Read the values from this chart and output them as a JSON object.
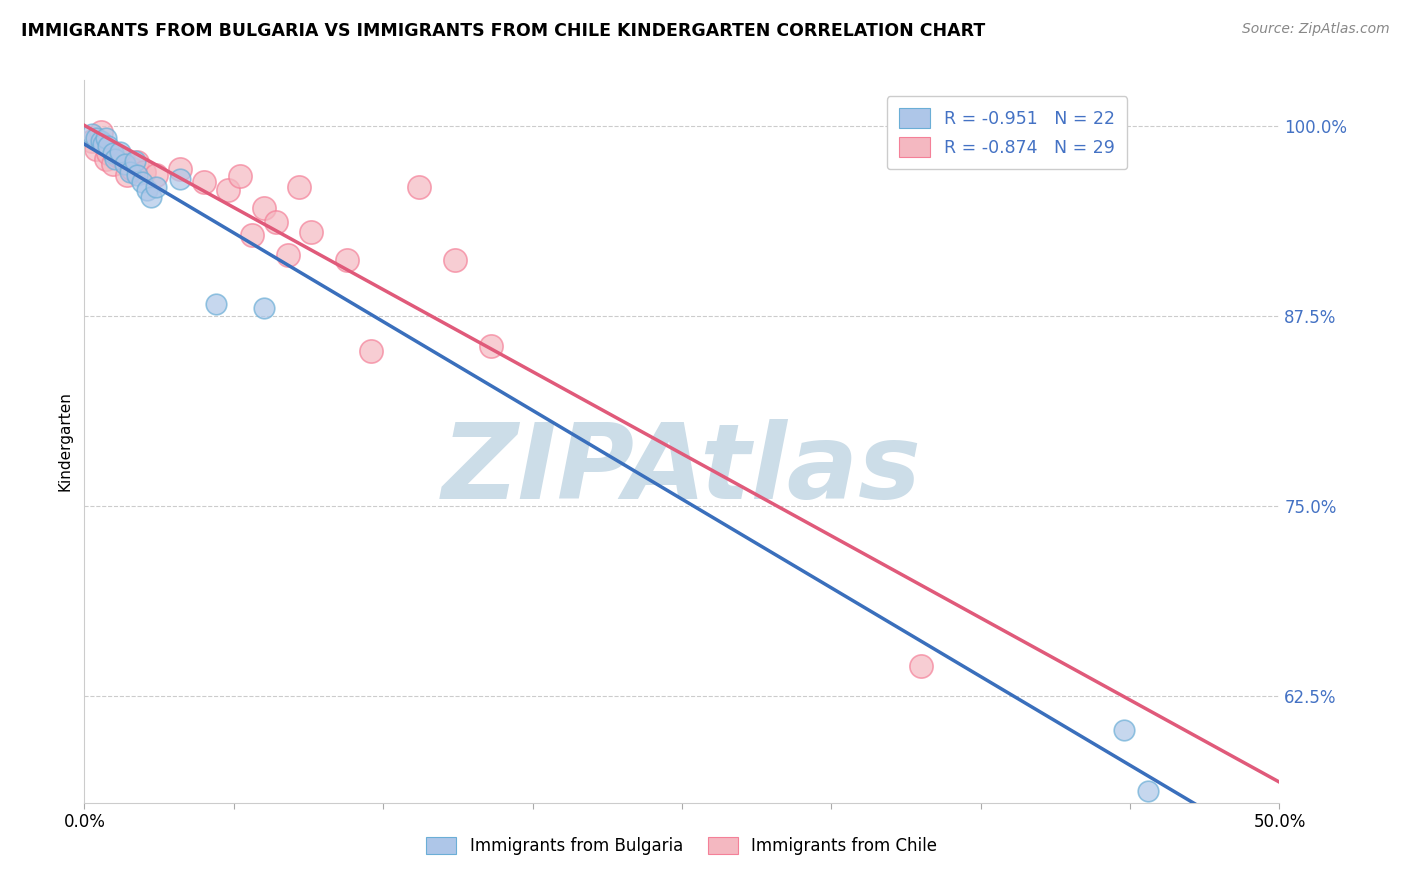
{
  "title": "IMMIGRANTS FROM BULGARIA VS IMMIGRANTS FROM CHILE KINDERGARTEN CORRELATION CHART",
  "source": "Source: ZipAtlas.com",
  "ylabel": "Kindergarten",
  "xlim": [
    0.0,
    0.5
  ],
  "ylim": [
    0.555,
    1.03
  ],
  "yticks": [
    0.625,
    0.75,
    0.875,
    1.0
  ],
  "ytick_labels": [
    "62.5%",
    "75.0%",
    "87.5%",
    "100.0%"
  ],
  "xtick_positions": [
    0.0,
    0.0625,
    0.125,
    0.1875,
    0.25,
    0.3125,
    0.375,
    0.4375,
    0.5
  ],
  "legend_r1": "R = -0.951",
  "legend_n1": "N = 22",
  "legend_r2": "R = -0.874",
  "legend_n2": "N = 29",
  "legend_label1": "Immigrants from Bulgaria",
  "legend_label2": "Immigrants from Chile",
  "bulgaria_color": "#aec6e8",
  "chile_color": "#f4b8c1",
  "bulgaria_edge_color": "#6baed6",
  "chile_edge_color": "#f48098",
  "bulgaria_line_color": "#3a6fbc",
  "chile_line_color": "#e05a7a",
  "legend_text_color": "#4472c4",
  "watermark": "ZIPAtlas",
  "watermark_color": "#ccdde8",
  "bg_color": "#ffffff",
  "grid_color": "#cccccc",
  "bulgaria_scatter_x": [
    0.003,
    0.005,
    0.007,
    0.008,
    0.009,
    0.01,
    0.012,
    0.013,
    0.015,
    0.017,
    0.019,
    0.021,
    0.022,
    0.024,
    0.026,
    0.028,
    0.03,
    0.04,
    0.055,
    0.075,
    0.435,
    0.445
  ],
  "bulgaria_scatter_y": [
    0.995,
    0.992,
    0.99,
    0.988,
    0.992,
    0.987,
    0.982,
    0.978,
    0.983,
    0.975,
    0.97,
    0.977,
    0.968,
    0.963,
    0.958,
    0.953,
    0.96,
    0.965,
    0.883,
    0.88,
    0.603,
    0.563
  ],
  "chile_scatter_x": [
    0.003,
    0.005,
    0.007,
    0.009,
    0.01,
    0.012,
    0.014,
    0.016,
    0.018,
    0.02,
    0.022,
    0.025,
    0.03,
    0.04,
    0.05,
    0.06,
    0.065,
    0.07,
    0.075,
    0.08,
    0.085,
    0.09,
    0.095,
    0.11,
    0.12,
    0.14,
    0.155,
    0.17,
    0.35
  ],
  "chile_scatter_y": [
    0.99,
    0.985,
    0.996,
    0.978,
    0.982,
    0.975,
    0.98,
    0.978,
    0.968,
    0.972,
    0.976,
    0.97,
    0.968,
    0.972,
    0.963,
    0.958,
    0.967,
    0.928,
    0.946,
    0.937,
    0.915,
    0.96,
    0.93,
    0.912,
    0.852,
    0.96,
    0.912,
    0.855,
    0.645
  ]
}
